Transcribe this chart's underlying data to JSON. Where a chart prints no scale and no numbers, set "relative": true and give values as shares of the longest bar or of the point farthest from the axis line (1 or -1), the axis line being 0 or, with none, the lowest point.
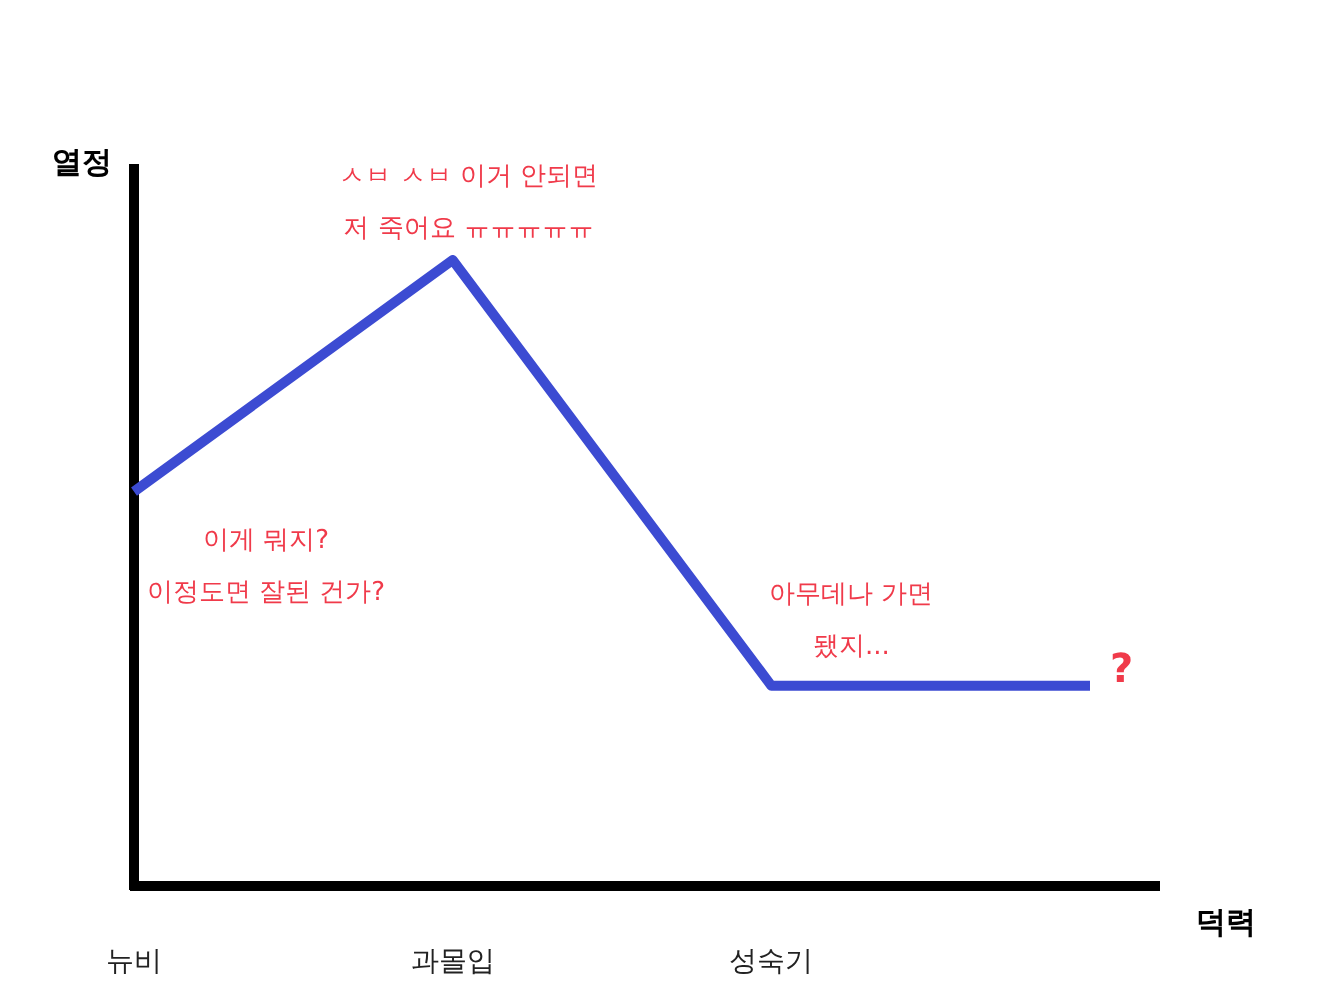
{
  "chart_data": {
    "type": "line",
    "relative": true,
    "ylabel": "열정",
    "xlabel": "덕력",
    "categories": [
      "뉴비",
      "과몰입",
      "성숙기",
      null
    ],
    "series": [
      {
        "color": "#3c4bd2",
        "values": [
          0.63,
          1,
          0.32,
          0.32
        ]
      }
    ],
    "marker": "none",
    "line_style": "solid",
    "annotations": [
      {
        "text": "이게 뭐지?\n이정도면 잘된 건가?",
        "x": "뉴비",
        "y": 0.63
      },
      {
        "text": "ㅅㅂ ㅅㅂ 이거 안되면\n저 죽어요 ㅠㅠㅠㅠㅠ",
        "x": "과몰입",
        "y": 1
      },
      {
        "text": "아무데나 가면\n됐지...",
        "x": "성숙기",
        "y": 0.32
      },
      "?"
    ]
  }
}
